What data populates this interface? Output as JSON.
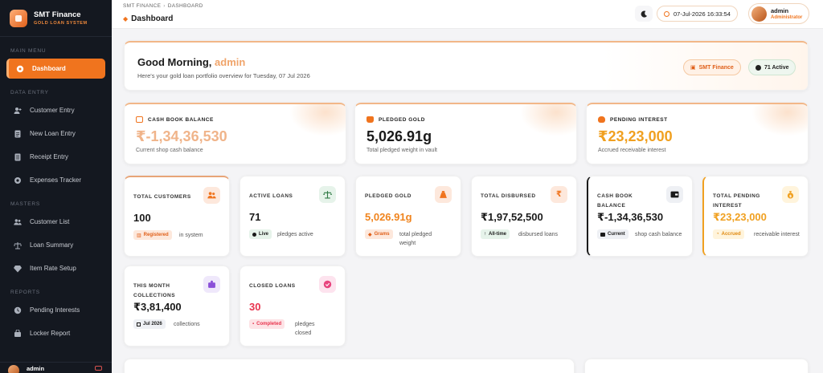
{
  "brand": {
    "title": "SMT Finance",
    "subtitle": "GOLD LOAN SYSTEM"
  },
  "sidebar": {
    "sections": [
      {
        "label": "MAIN MENU",
        "items": [
          {
            "label": "Dashboard",
            "icon": "dashboard-icon",
            "active": true
          }
        ]
      },
      {
        "label": "DATA ENTRY",
        "items": [
          {
            "label": "Customer Entry",
            "icon": "user-plus-icon"
          },
          {
            "label": "New Loan Entry",
            "icon": "document-icon"
          },
          {
            "label": "Receipt Entry",
            "icon": "receipt-icon"
          },
          {
            "label": "Expenses Tracker",
            "icon": "expense-icon"
          }
        ]
      },
      {
        "label": "MASTERS",
        "items": [
          {
            "label": "Customer List",
            "icon": "users-icon"
          },
          {
            "label": "Loan Summary",
            "icon": "scale-icon"
          },
          {
            "label": "Item Rate Setup",
            "icon": "gem-icon"
          }
        ]
      },
      {
        "label": "REPORTS",
        "items": [
          {
            "label": "Pending Interests",
            "icon": "clock-icon"
          },
          {
            "label": "Locker Report",
            "icon": "locker-icon"
          }
        ]
      }
    ],
    "user": "admin"
  },
  "header": {
    "breadcrumb": [
      "SMT FINANCE",
      "DASHBOARD"
    ],
    "title": "Dashboard",
    "datetime": "07-Jul-2026 16:33:54",
    "user_name": "admin",
    "user_role": "Administrator"
  },
  "welcome": {
    "greeting": "Good Morning, ",
    "name": "admin",
    "subtitle": "Here's your gold loan portfolio overview for Tuesday, 07 Jul 2026",
    "org_pill": "SMT Finance",
    "active_pill": "71 Active"
  },
  "summary_cards": [
    {
      "label": "CASH BOOK BALANCE",
      "value": "₹-1,34,36,530",
      "caption": "Current shop cash balance",
      "value_color": "#e8742a",
      "icon_color": "#f0741e"
    },
    {
      "label": "PLEDGED GOLD",
      "value": "5,026.91g",
      "caption": "Total pledged weight in vault",
      "value_color": "#1a1a1a",
      "icon_color": "#f0741e"
    },
    {
      "label": "PENDING INTEREST",
      "value": "₹23,23,000",
      "caption": "Accrued receivable interest",
      "value_color": "#f0a020",
      "icon_color": "#f0741e"
    }
  ],
  "stat_cards": [
    {
      "title": "TOTAL CUSTOMERS",
      "value": "100",
      "badge": "Registered",
      "note": "in system",
      "value_color": "#1a1a1a",
      "badge_bg": "#fde8dc",
      "badge_color": "#e0601a",
      "icon": "users-icon",
      "icon_bg": "#fde8dc",
      "icon_color": "#f0741e"
    },
    {
      "title": "ACTIVE LOANS",
      "value": "71",
      "badge": "Live",
      "note": "pledges active",
      "value_color": "#1a1a1a",
      "badge_bg": "#e6f3ea",
      "badge_color": "#1a1a1a",
      "icon": "scale-icon",
      "icon_bg": "#e6f3ea",
      "icon_color": "#2f7a44"
    },
    {
      "title": "PLEDGED GOLD",
      "value": "5,026.91g",
      "badge": "Grams",
      "note": "total pledged weight",
      "value_color": "#f0841e",
      "badge_bg": "#fde8dc",
      "badge_color": "#e0601a",
      "icon": "bag-icon",
      "icon_bg": "#fde8dc",
      "icon_color": "#f0741e"
    },
    {
      "title": "TOTAL DISBURSED",
      "value": "₹1,97,52,500",
      "badge": "All-time",
      "note": "disbursed loans",
      "value_color": "#1a1a1a",
      "badge_bg": "#e6f3ea",
      "badge_color": "#1a1a1a",
      "icon": "rupee-icon",
      "icon_bg": "#fde8dc",
      "icon_color": "#f0741e"
    },
    {
      "title": "CASH BOOK BALANCE",
      "value": "₹-1,34,36,530",
      "badge": "Current",
      "note": "shop cash balance",
      "value_color": "#1a1a1a",
      "badge_bg": "#eef0f4",
      "badge_color": "#1a1a1a",
      "icon": "wallet-icon",
      "icon_bg": "#eef0f4",
      "icon_color": "#1a1a1a"
    },
    {
      "title": "TOTAL PENDING INTEREST",
      "value": "₹23,23,000",
      "badge": "Accrued",
      "note": "receivable interest",
      "value_color": "#f0a020",
      "badge_bg": "#fff4dc",
      "badge_color": "#e08a10",
      "icon": "money-bag-icon",
      "icon_bg": "#fff4dc",
      "icon_color": "#f0a020"
    }
  ],
  "stat_cards_row2": [
    {
      "title": "THIS MONTH COLLECTIONS",
      "value": "₹3,81,400",
      "badge": "Jul 2026",
      "note": "collections",
      "value_color": "#1a1a1a",
      "badge_bg": "#eef0f4",
      "badge_color": "#1a1a1a",
      "icon": "collections-icon",
      "icon_bg": "#efe8fb",
      "icon_color": "#8a4fd8"
    },
    {
      "title": "CLOSED LOANS",
      "value": "30",
      "badge": "Completed",
      "note": "pledges closed",
      "value_color": "#e8344e",
      "badge_bg": "#fde3e6",
      "badge_color": "#e8344e",
      "icon": "check-icon",
      "icon_bg": "#fde3ee",
      "icon_color": "#e8447e"
    }
  ]
}
